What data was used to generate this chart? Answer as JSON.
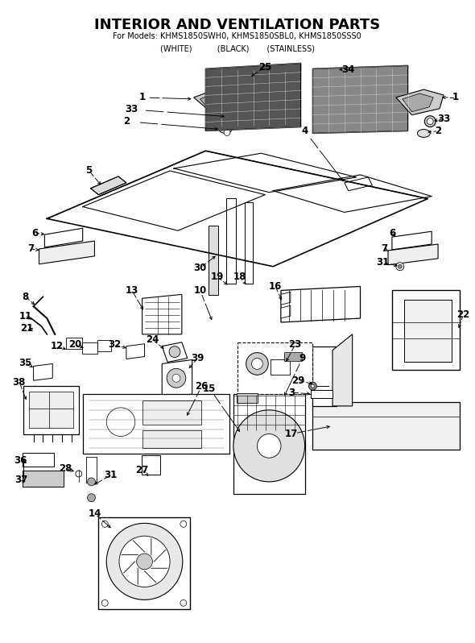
{
  "title": "INTERIOR AND VENTILATION PARTS",
  "subtitle": "For Models: KHMS1850SWH0, KHMS1850SBL0, KHMS1850SSS0",
  "subtitle2": "(WHITE)          (BLACK)       (STAINLESS)",
  "bg_color": "#ffffff",
  "text_color": "#000000",
  "fig_width": 5.9,
  "fig_height": 7.98,
  "dpi": 100
}
